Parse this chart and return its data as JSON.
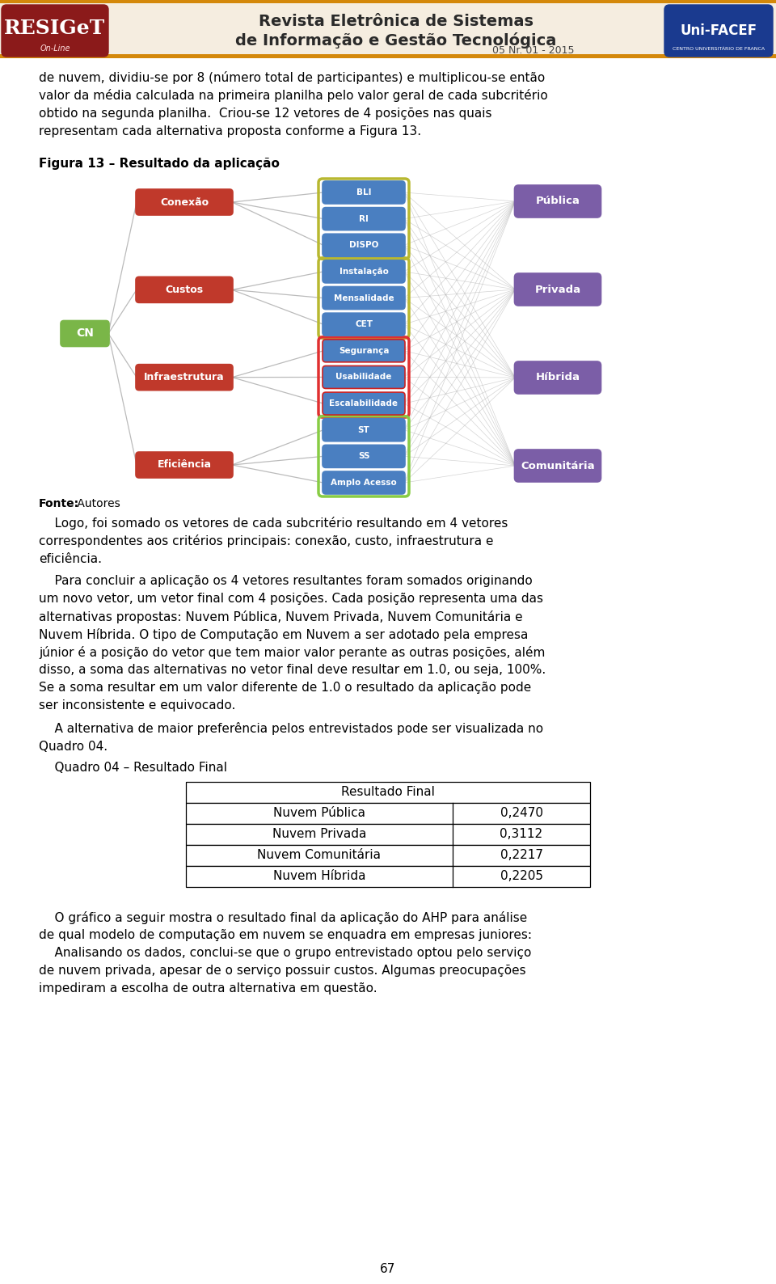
{
  "body_text1_lines": [
    "de nuvem, dividiu-se por 8 (número total de participantes) e multiplicou-se então",
    "valor da média calculada na primeira planilha pelo valor geral de cada subcritério",
    "obtido na segunda planilha.  Criou-se 12 vetores de 4 posições nas quais",
    "representam cada alternativa proposta conforme a Figura 13."
  ],
  "fig_caption": "Figura 13 – Resultado da aplicação",
  "fonte_bold": "Fonte:",
  "fonte_normal": " Autores",
  "body_text2_lines": [
    "    Logo, foi somado os vetores de cada subcritério resultando em 4 vetores",
    "correspondentes aos critérios principais: conexão, custo, infraestrutura e",
    "eficiência."
  ],
  "body_text3_lines": [
    "    Para concluir a aplicação os 4 vetores resultantes foram somados originando",
    "um novo vetor, um vetor final com 4 posições. Cada posição representa uma das",
    "alternativas propostas: Nuvem Pública, Nuvem Privada, Nuvem Comunitária e",
    "Nuvem Híbrida. O tipo de Computação em Nuvem a ser adotado pela empresa",
    "júnior é a posição do vetor que tem maior valor perante as outras posições, além",
    "disso, a soma das alternativas no vetor final deve resultar em 1.0, ou seja, 100%.",
    "Se a soma resultar em um valor diferente de 1.0 o resultado da aplicação pode",
    "ser inconsistente e equivocado."
  ],
  "body_text4_lines": [
    "    A alternativa de maior preferência pelos entrevistados pode ser visualizada no",
    "Quadro 04."
  ],
  "table_caption": "    Quadro 04 – Resultado Final",
  "table_header": "Resultado Final",
  "table_rows": [
    [
      "Nuvem Pública",
      "0,2470"
    ],
    [
      "Nuvem Privada",
      "0,3112"
    ],
    [
      "Nuvem Comunitária",
      "0,2217"
    ],
    [
      "Nuvem Híbrida",
      "0,2205"
    ]
  ],
  "body_text5_lines": [
    "    O gráfico a seguir mostra o resultado final da aplicação do AHP para análise",
    "de qual modelo de computação em nuvem se enquadra em empresas juniores:",
    "    Analisando os dados, conclui-se que o grupo entrevistado optou pelo serviço",
    "de nuvem privada, apesar de o serviço possuir custos. Algumas preocupações",
    "impediram a escolha de outra alternativa em questão."
  ],
  "page_num": "67",
  "cn_color": "#7ab648",
  "criteria_color": "#c0392b",
  "subcriteria_color": "#4a7fc1",
  "alternatives_color": "#7b5ea7",
  "header_bg": "#f5ede0",
  "header_stripe": "#d4880a",
  "resiget_bg": "#8B1A1A",
  "unifacef_bg": "#1a3a8f",
  "criteria_nodes": [
    "Conexão",
    "Custos",
    "Infraestrutura",
    "Eficiência"
  ],
  "subcriteria_nodes": [
    "BLI",
    "RI",
    "DISPO",
    "Instalação",
    "Mensalidade",
    "CET",
    "Segurança",
    "Usabilidade",
    "Escalabilidade",
    "ST",
    "SS",
    "Amplo Acesso"
  ],
  "alternatives_nodes": [
    "Pública",
    "Privada",
    "Híbrida",
    "Comunitária"
  ],
  "group_borders": [
    "#b8b830",
    "#b8b830",
    "#e03030",
    "#88cc44"
  ]
}
